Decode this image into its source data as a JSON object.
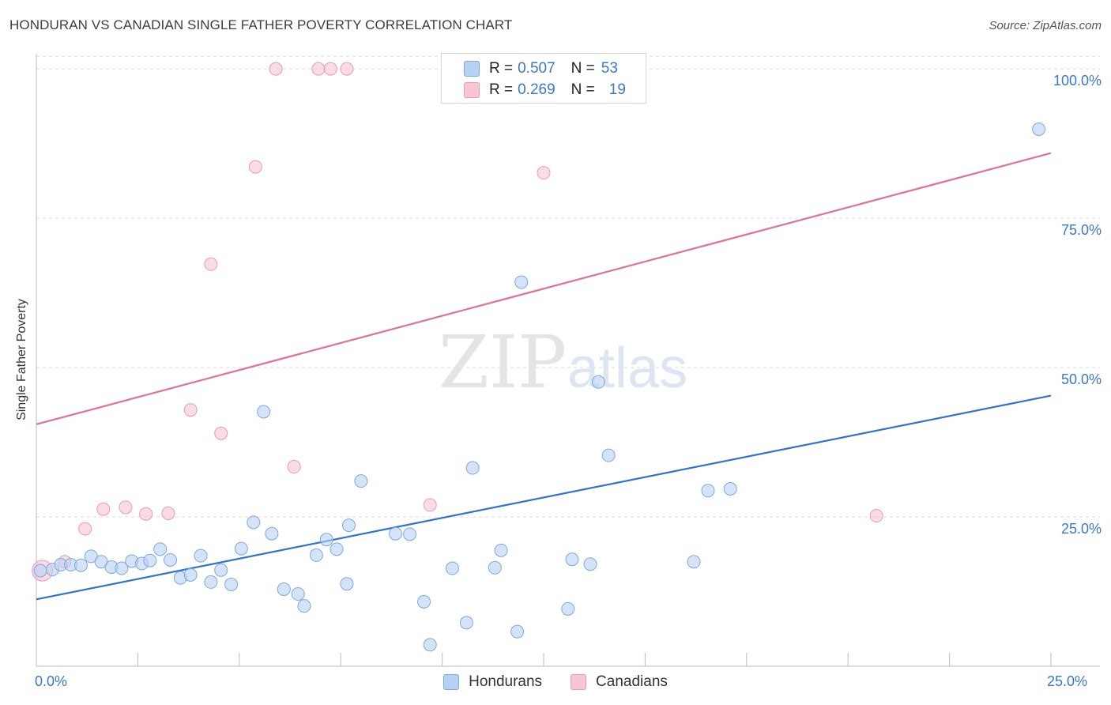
{
  "title": "HONDURAN VS CANADIAN SINGLE FATHER POVERTY CORRELATION CHART",
  "source": "Source: ZipAtlas.com",
  "watermark": {
    "zip": "ZIP",
    "atlas": "atlas"
  },
  "colors": {
    "blue_fill": "#b7d1f2",
    "blue_stroke": "#7fa8dc",
    "blue_line": "#2f72d0",
    "pink_fill": "#f7c5d4",
    "pink_stroke": "#ee98b4",
    "pink_line": "#e0709a",
    "tick_text": "#3a78c9",
    "grid": "#dddddd"
  },
  "legend": {
    "rows": [
      {
        "r_label": "R =",
        "r_value": "0.507",
        "n_label": "N =",
        "n_value": "53"
      },
      {
        "r_label": "R =",
        "r_value": "0.269",
        "n_label": "N =",
        "n_value": "19"
      }
    ]
  },
  "bottom_legend": {
    "hondurans": "Hondurans",
    "canadians": "Canadians"
  },
  "chart_data": {
    "type": "scatter",
    "title": "HONDURAN VS CANADIAN SINGLE FATHER POVERTY CORRELATION CHART",
    "xlabel": "",
    "ylabel": "Single Father Poverty",
    "xlim": [
      0,
      25
    ],
    "ylim": [
      0,
      102
    ],
    "x_tick_labels": [
      "0.0%",
      "25.0%"
    ],
    "y_ticks": [
      25,
      50,
      75,
      100
    ],
    "y_tick_labels": [
      "25.0%",
      "50.0%",
      "75.0%",
      "100.0%"
    ],
    "grid": "horizontal dashed",
    "legend_position": "top-center",
    "series": [
      {
        "name": "Hondurans",
        "color": "#7fa8dc",
        "trend": {
          "x": [
            0,
            25
          ],
          "y": [
            11.2,
            45.3
          ]
        },
        "points": [
          [
            0.1,
            16.0
          ],
          [
            0.4,
            16.2
          ],
          [
            0.6,
            17.0
          ],
          [
            0.85,
            17.0
          ],
          [
            1.1,
            16.9
          ],
          [
            1.35,
            18.4
          ],
          [
            1.6,
            17.5
          ],
          [
            1.85,
            16.6
          ],
          [
            2.1,
            16.4
          ],
          [
            2.35,
            17.6
          ],
          [
            2.6,
            17.2
          ],
          [
            2.8,
            17.7
          ],
          [
            3.05,
            19.6
          ],
          [
            3.3,
            17.8
          ],
          [
            3.55,
            14.8
          ],
          [
            3.8,
            15.3
          ],
          [
            4.05,
            18.5
          ],
          [
            4.3,
            14.1
          ],
          [
            4.55,
            16.1
          ],
          [
            4.8,
            13.7
          ],
          [
            5.05,
            19.7
          ],
          [
            5.35,
            24.1
          ],
          [
            5.6,
            42.6
          ],
          [
            5.8,
            22.2
          ],
          [
            6.1,
            12.9
          ],
          [
            6.45,
            12.1
          ],
          [
            6.6,
            10.1
          ],
          [
            6.9,
            18.6
          ],
          [
            7.15,
            21.2
          ],
          [
            7.4,
            19.6
          ],
          [
            7.65,
            13.8
          ],
          [
            7.7,
            23.6
          ],
          [
            8.0,
            31.0
          ],
          [
            8.85,
            22.2
          ],
          [
            9.2,
            22.1
          ],
          [
            9.55,
            10.8
          ],
          [
            9.7,
            3.6
          ],
          [
            10.25,
            16.4
          ],
          [
            10.6,
            7.3
          ],
          [
            10.75,
            33.2
          ],
          [
            11.3,
            16.5
          ],
          [
            11.45,
            19.4
          ],
          [
            11.85,
            5.8
          ],
          [
            11.95,
            64.3
          ],
          [
            13.1,
            9.6
          ],
          [
            13.2,
            17.9
          ],
          [
            13.65,
            17.1
          ],
          [
            13.85,
            47.6
          ],
          [
            14.1,
            35.3
          ],
          [
            16.2,
            17.5
          ],
          [
            16.55,
            29.4
          ],
          [
            17.1,
            29.7
          ],
          [
            24.7,
            89.9
          ]
        ]
      },
      {
        "name": "Canadians",
        "color": "#ee98b4",
        "trend": {
          "x": [
            0,
            25
          ],
          "y": [
            40.5,
            85.9
          ]
        },
        "points": [
          [
            0.15,
            16.0
          ],
          [
            0.7,
            17.5
          ],
          [
            1.2,
            23.0
          ],
          [
            1.65,
            26.3
          ],
          [
            2.2,
            26.6
          ],
          [
            2.7,
            25.5
          ],
          [
            3.25,
            25.6
          ],
          [
            3.8,
            42.9
          ],
          [
            4.3,
            67.3
          ],
          [
            4.55,
            39.0
          ],
          [
            5.4,
            83.6
          ],
          [
            5.9,
            100.0
          ],
          [
            6.35,
            33.4
          ],
          [
            6.95,
            100.0
          ],
          [
            7.25,
            100.0
          ],
          [
            7.65,
            100.0
          ],
          [
            9.7,
            27.0
          ],
          [
            12.5,
            82.6
          ],
          [
            20.7,
            25.2
          ]
        ]
      }
    ]
  }
}
